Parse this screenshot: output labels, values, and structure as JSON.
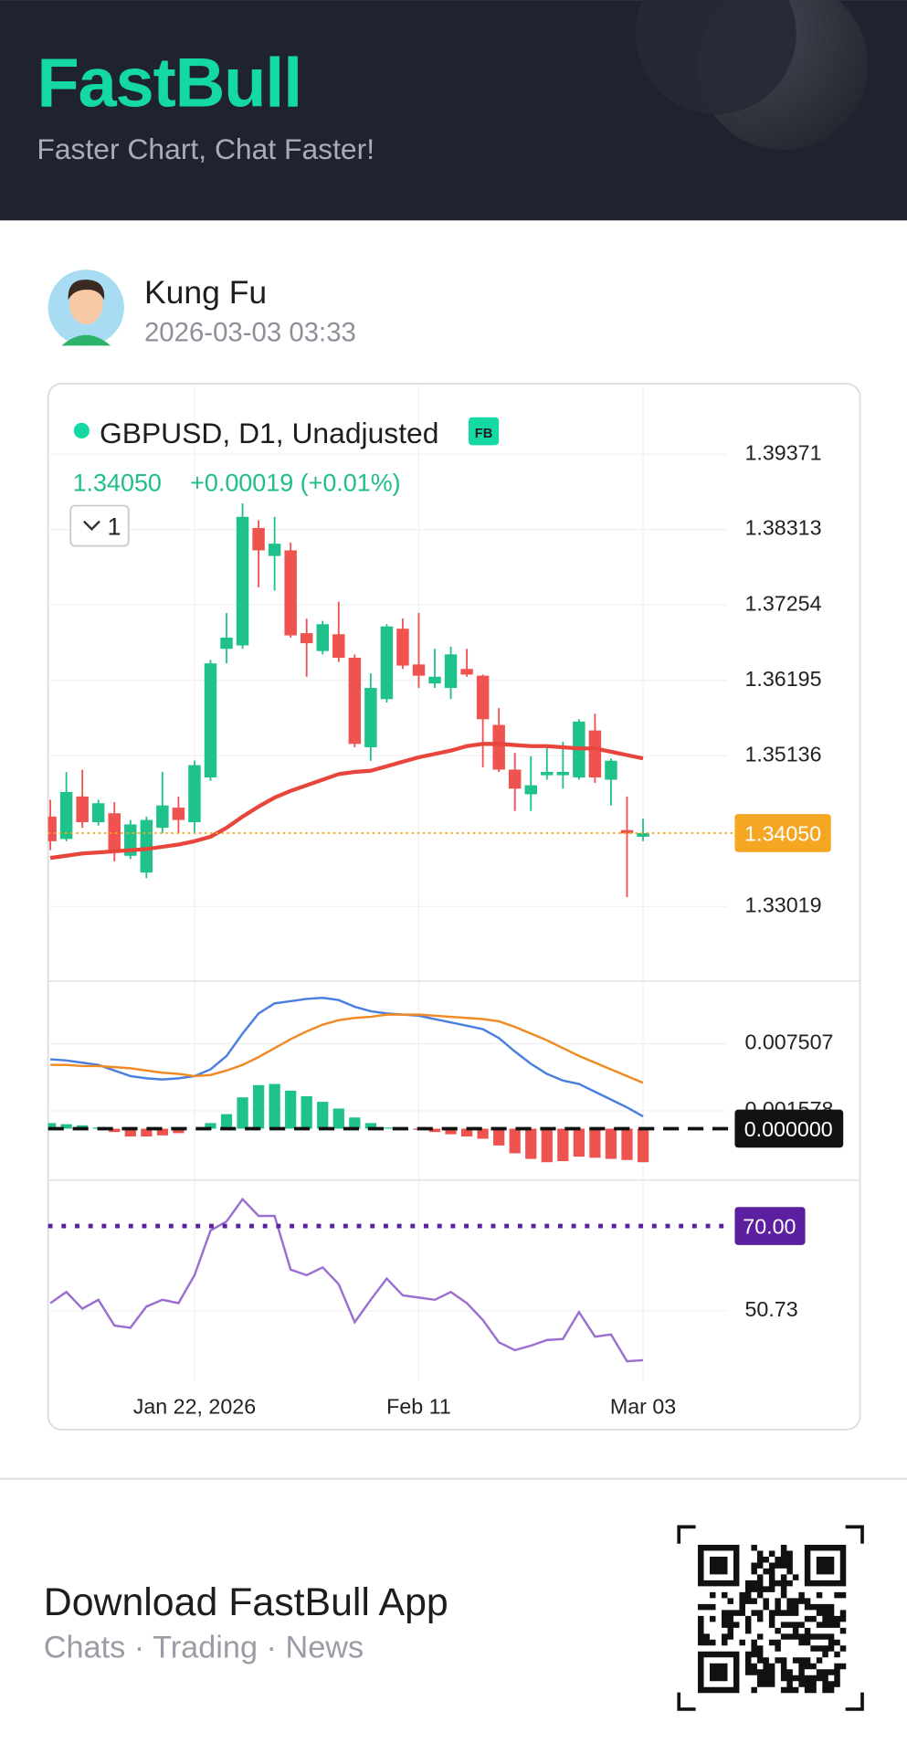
{
  "header": {
    "brand": "FastBull",
    "tagline": "Faster Chart, Chat Faster!"
  },
  "post": {
    "author": "Kung Fu",
    "timestamp": "2026-03-03 03:33"
  },
  "chart_data": [
    {
      "type": "candlestick",
      "title": "GBPUSD, D1, Unadjusted",
      "badge": "FB",
      "last": {
        "value": 1.3405,
        "label": "1.34050"
      },
      "change_label": "+0.00019 (+0.01%)",
      "interval": "1",
      "categories": [
        null,
        null,
        null,
        null,
        null,
        null,
        null,
        null,
        null,
        "Jan 22, 2026",
        null,
        null,
        null,
        null,
        null,
        null,
        null,
        null,
        null,
        null,
        null,
        null,
        null,
        "Feb 11",
        null,
        null,
        null,
        null,
        null,
        null,
        null,
        null,
        null,
        null,
        null,
        null,
        null,
        "Mar 03"
      ],
      "open": [
        1.34281,
        1.33967,
        1.34564,
        1.34202,
        1.34328,
        1.33731,
        1.33495,
        1.34124,
        1.34407,
        1.34202,
        1.34831,
        1.36637,
        1.36685,
        1.38334,
        1.37941,
        1.3802,
        1.36857,
        1.36606,
        1.36842,
        1.36512,
        1.35255,
        1.35931,
        1.3692,
        1.36418,
        1.36151,
        1.36088,
        1.36355,
        1.3626,
        1.35569,
        1.34941,
        1.34595,
        1.34862,
        1.34862,
        1.34831,
        1.35491,
        1.34799,
        1.34092,
        1.33998
      ],
      "high": [
        1.34517,
        1.34909,
        1.34941,
        1.34517,
        1.34485,
        1.34234,
        1.34281,
        1.34909,
        1.34564,
        1.35066,
        1.3648,
        1.3714,
        1.3868,
        1.38444,
        1.38491,
        1.3813,
        1.37062,
        1.3703,
        1.37297,
        1.36559,
        1.36292,
        1.36983,
        1.37062,
        1.3714,
        1.36637,
        1.36669,
        1.36637,
        1.36276,
        1.35805,
        1.35176,
        1.35129,
        1.35255,
        1.35334,
        1.35648,
        1.35726,
        1.35098,
        1.34564,
        1.3425
      ],
      "low": [
        1.3381,
        1.33935,
        1.34124,
        1.34155,
        1.33653,
        1.33684,
        1.33417,
        1.34045,
        1.34045,
        1.34045,
        1.34784,
        1.36433,
        1.36637,
        1.37502,
        1.37454,
        1.36795,
        1.36245,
        1.36559,
        1.36449,
        1.35255,
        1.35066,
        1.35883,
        1.36355,
        1.36088,
        1.36088,
        1.35931,
        1.36245,
        1.34972,
        1.34909,
        1.3436,
        1.3436,
        1.34799,
        1.34674,
        1.34799,
        1.34752,
        1.34438,
        1.3315,
        1.33935
      ],
      "close": [
        1.33935,
        1.34627,
        1.34202,
        1.34469,
        1.33778,
        1.34171,
        1.34234,
        1.34438,
        1.34234,
        1.35004,
        1.36433,
        1.36795,
        1.38491,
        1.3802,
        1.38114,
        1.36826,
        1.36716,
        1.36983,
        1.36512,
        1.35302,
        1.36088,
        1.36952,
        1.36402,
        1.3626,
        1.36245,
        1.36559,
        1.36276,
        1.35648,
        1.34941,
        1.34674,
        1.34721,
        1.34909,
        1.34909,
        1.35616,
        1.34831,
        1.35066,
        1.34045,
        1.3405
      ],
      "up_color": "#20c28b",
      "down_color": "#ef5350",
      "last_color": "#f5a623",
      "ma": {
        "color": "#e8453c",
        "values": [
          1.337,
          1.33731,
          1.33763,
          1.33778,
          1.33794,
          1.3381,
          1.33825,
          1.33857,
          1.33888,
          1.33935,
          1.33998,
          1.34124,
          1.34281,
          1.34422,
          1.34548,
          1.34642,
          1.34721,
          1.34799,
          1.34878,
          1.34909,
          1.34925,
          1.34988,
          1.35051,
          1.35114,
          1.35161,
          1.35208,
          1.35271,
          1.35302,
          1.35302,
          1.35286,
          1.35271,
          1.35271,
          1.35255,
          1.35239,
          1.35239,
          1.35192,
          1.35145,
          1.35098
        ]
      },
      "ylim": [
        1.31972,
        1.40329
      ],
      "yticks": [
        1.39371,
        1.38313,
        1.37254,
        1.36195,
        1.35136,
        1.33019
      ],
      "grid": true
    },
    {
      "type": "macd",
      "ylim": [
        -0.004545,
        0.013042
      ],
      "yticks": [
        0.007507,
        0.001578
      ],
      "zero_line": {
        "value": 0,
        "label": "0.000000"
      },
      "series": [
        {
          "color": "#4a7fe0",
          "values": [
            0.006126,
            0.006027,
            0.005829,
            0.005632,
            0.005138,
            0.004644,
            0.004446,
            0.004347,
            0.004446,
            0.004644,
            0.005236,
            0.006422,
            0.008398,
            0.010176,
            0.011066,
            0.011263,
            0.011461,
            0.01156,
            0.011362,
            0.010769,
            0.010374,
            0.010176,
            0.010078,
            0.009979,
            0.009682,
            0.009386,
            0.00909,
            0.008793,
            0.008003,
            0.006817,
            0.00573,
            0.004841,
            0.004248,
            0.003952,
            0.00326,
            0.002569,
            0.001877,
            0.001087
          ]
        },
        {
          "color": "#f08a24",
          "values": [
            0.005632,
            0.005632,
            0.005533,
            0.005533,
            0.005434,
            0.005335,
            0.005138,
            0.00494,
            0.004841,
            0.004644,
            0.004742,
            0.005138,
            0.005632,
            0.006323,
            0.007114,
            0.007904,
            0.008596,
            0.009188,
            0.009584,
            0.009781,
            0.00988,
            0.010078,
            0.010078,
            0.010078,
            0.009979,
            0.00988,
            0.009781,
            0.009682,
            0.009485,
            0.008991,
            0.008398,
            0.007805,
            0.007114,
            0.006422,
            0.005829,
            0.005236,
            0.004644,
            0.004051
          ]
        }
      ],
      "histogram": {
        "up_color": "#20c28b",
        "down_color": "#ef5350",
        "values": [
          0.000494,
          0.000395,
          0.000296,
          9.9e-05,
          -0.000296,
          -0.000691,
          -0.000692,
          -0.000593,
          -0.000395,
          0,
          0.000494,
          0.001284,
          0.002766,
          0.003853,
          0.003952,
          0.003359,
          0.002865,
          0.002372,
          0.001778,
          0.000988,
          0.000494,
          9.8e-05,
          0,
          -9.9e-05,
          -0.000297,
          -0.000494,
          -0.000691,
          -0.000889,
          -0.001482,
          -0.002174,
          -0.002668,
          -0.002964,
          -0.002866,
          -0.00247,
          -0.002569,
          -0.002667,
          -0.002767,
          -0.002964
        ]
      },
      "grid": true
    },
    {
      "type": "line",
      "ylim": [
        34.75,
        80.4
      ],
      "yticks": [
        50.73
      ],
      "level": {
        "value": 70,
        "label": "70.00",
        "color": "#5b1fa0"
      },
      "series": [
        {
          "color": "#9b6fd0",
          "values": [
            52.51,
            55.04,
            51.24,
            53.27,
            47.43,
            46.93,
            51.74,
            53.27,
            52.51,
            58.85,
            68.99,
            71.02,
            76.09,
            72.29,
            72.29,
            60.11,
            58.85,
            60.62,
            56.82,
            48.19,
            53.27,
            58.08,
            54.28,
            53.77,
            53.27,
            55.04,
            52.51,
            48.7,
            43.63,
            41.85,
            42.87,
            44.14,
            44.39,
            50.48,
            44.9,
            45.4,
            39.32,
            39.57
          ]
        }
      ],
      "grid": true
    }
  ],
  "footer": {
    "title": "Download FastBull App",
    "tagline": "Chats · Trading · News"
  }
}
